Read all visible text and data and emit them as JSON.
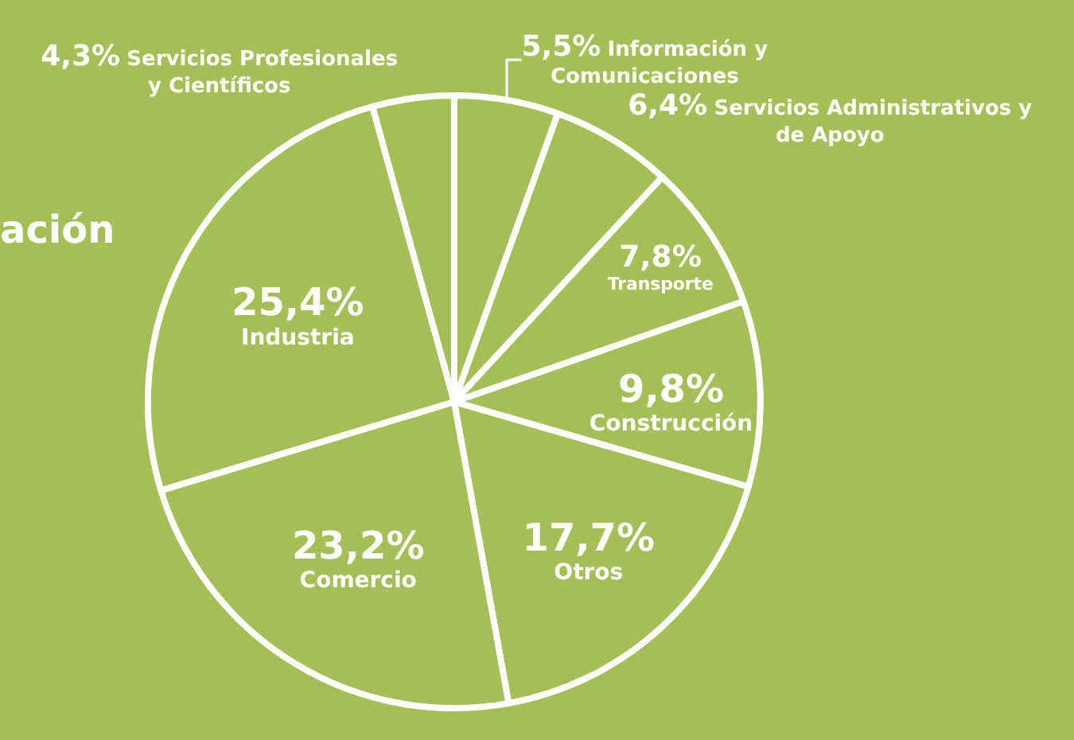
{
  "chart_data": {
    "type": "pie",
    "title": "ación",
    "categories": [
      "Información y Comunicaciones",
      "Servicios Administrativos y de Apoyo",
      "Transporte",
      "Construcción",
      "Otros",
      "Comercio",
      "Industria",
      "Servicios Profesionales y Científicos"
    ],
    "values": [
      5.5,
      6.4,
      7.8,
      9.8,
      17.7,
      23.2,
      25.4,
      4.3
    ],
    "value_labels": [
      "5,5%",
      "6,4%",
      "7,8%",
      "9,8%",
      "17,7%",
      "23,2%",
      "25,4%",
      "4,3%"
    ],
    "colors": [
      "#a4bf55",
      "#a4bf55",
      "#a4bf55",
      "#a4bf55",
      "#a4bf55",
      "#a4bf55",
      "#a4bf55",
      "#a4bf55"
    ],
    "legend": false
  }
}
